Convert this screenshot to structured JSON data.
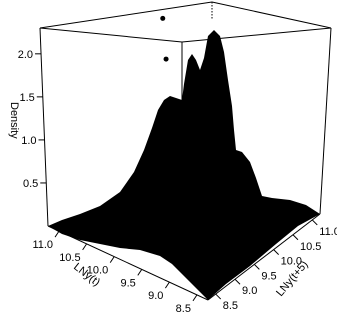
{
  "chart_data": {
    "type": "surface3d",
    "title": "",
    "xlabel": "LNy(t)",
    "ylabel": "LNy(t+5)",
    "zlabel": "Density",
    "x_ticks": [
      "11.0",
      "10.5",
      "10.0",
      "9.5",
      "9.0",
      "8.5"
    ],
    "y_ticks": [
      "8.5",
      "9.0",
      "9.5",
      "10.0",
      "10.5",
      "11.0"
    ],
    "z_ticks": [
      "0.5",
      "1.0",
      "1.5",
      "2.0"
    ],
    "xlim": [
      8.3,
      11.2
    ],
    "ylim": [
      8.3,
      11.2
    ],
    "zlim": [
      0,
      2.3
    ],
    "fill_color": "#000000",
    "peaks": [
      {
        "x": 9.9,
        "y": 9.5,
        "z": 1.72
      },
      {
        "x": 10.1,
        "y": 9.7,
        "z": 2.03
      },
      {
        "x": 10.25,
        "y": 9.9,
        "z": 2.25
      }
    ]
  }
}
